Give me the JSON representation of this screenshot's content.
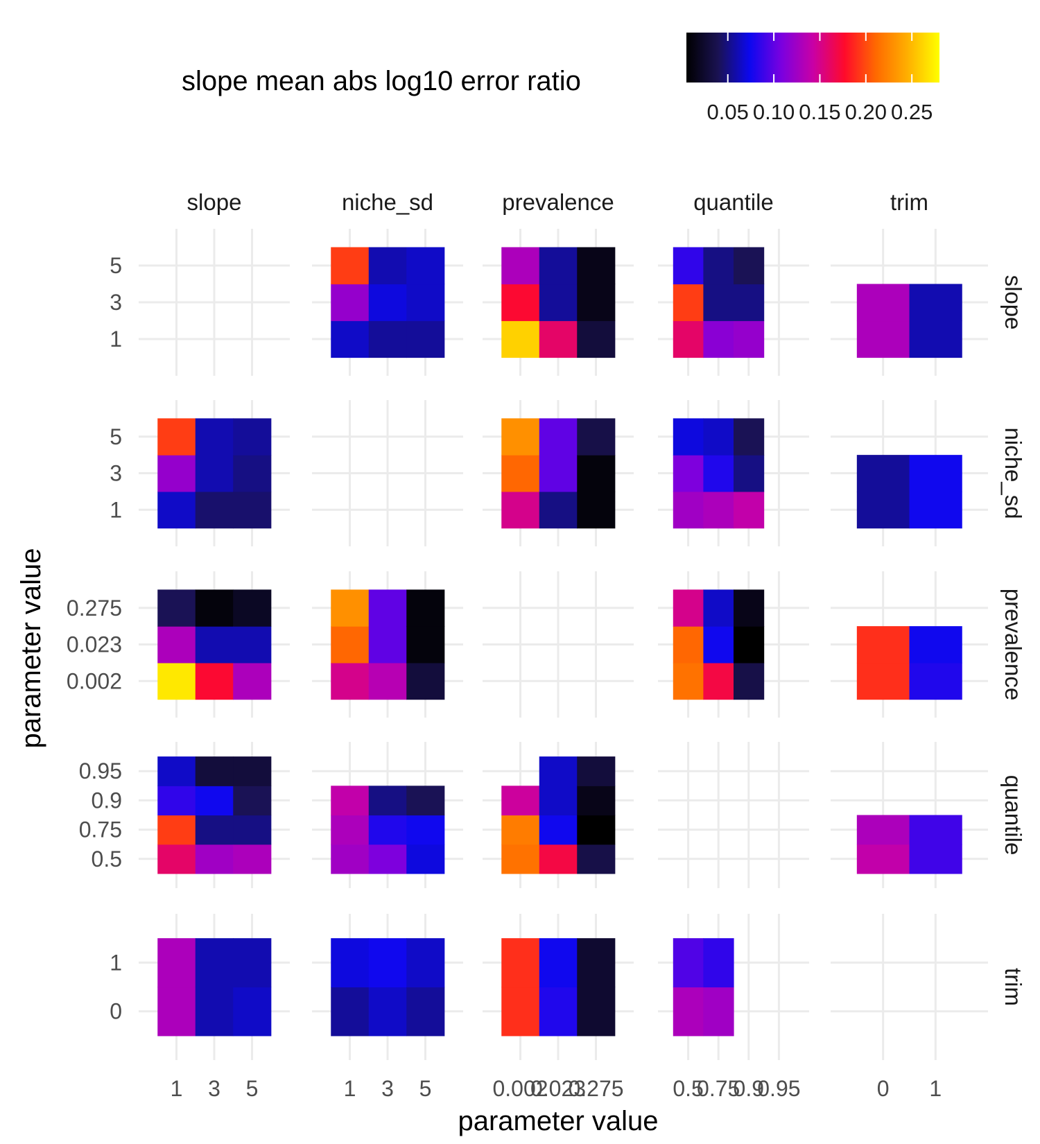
{
  "chart_data": {
    "type": "heatmap",
    "title": "slope mean abs log10 error ratio",
    "xlabel": "parameter value",
    "ylabel": "parameter value",
    "legend": {
      "position": "top-right",
      "ticks": [
        0.05,
        0.1,
        0.15,
        0.2,
        0.25
      ],
      "tick_labels": [
        "0.05",
        "0.10",
        "0.15",
        "0.20",
        "0.25"
      ],
      "range": [
        0.005,
        0.28
      ],
      "colors": [
        "#000000",
        "#1a1252",
        "#0c08ef",
        "#7a00e0",
        "#c800a6",
        "#ff0a2b",
        "#ff6a00",
        "#ffb000",
        "#ffff00"
      ]
    },
    "parameters": [
      "slope",
      "niche_sd",
      "prevalence",
      "quantile",
      "trim"
    ],
    "levels": {
      "slope": [
        "1",
        "3",
        "5"
      ],
      "niche_sd": [
        "1",
        "3",
        "5"
      ],
      "prevalence": [
        "0.002",
        "0.023",
        "0.275"
      ],
      "quantile": [
        "0.5",
        "0.75",
        "0.9",
        "0.95"
      ],
      "trim": [
        "0",
        "1"
      ]
    },
    "cells": {
      "niche_sd|slope": [
        [
          0.065,
          0.12,
          0.195
        ],
        [
          0.045,
          0.06,
          0.06
        ],
        [
          0.045,
          0.05,
          0.055
        ]
      ],
      "prevalence|slope": [
        [
          0.27,
          0.13,
          0.04
        ],
        [
          0.175,
          0.06,
          0.01
        ],
        [
          0.13,
          0.06,
          0.02
        ]
      ],
      "quantile|slope": [
        [
          0.16,
          0.195,
          0.085,
          0.065
        ],
        [
          0.125,
          0.05,
          0.075,
          0.03
        ],
        [
          0.13,
          0.05,
          0.04,
          0.03
        ],
        [
          0.135,
          0.06,
          0.07,
          0.04
        ]
      ],
      "trim|slope": [
        [
          0.13,
          0.13
        ],
        [
          0.06,
          0.06
        ],
        [
          0.065,
          0.06
        ]
      ],
      "slope|niche_sd": [
        [
          0.065,
          0.12,
          0.195
        ],
        [
          0.055,
          0.07,
          0.06
        ],
        [
          0.055,
          0.065,
          0.065
        ]
      ],
      "prevalence|niche_sd": [
        [
          0.15,
          0.21,
          0.23
        ],
        [
          0.135,
          0.1,
          0.1
        ],
        [
          0.03,
          0.01,
          0.01
        ]
      ],
      "quantile|niche_sd": [
        [
          0.125,
          0.13,
          0.14
        ],
        [
          0.11,
          0.08,
          0.05
        ],
        [
          0.07,
          0.075,
          0.04
        ],
        [
          0.055,
          0.055,
          0.02
        ]
      ],
      "trim|niche_sd": [
        [
          0.055,
          0.07,
          0.105
        ],
        [
          0.065,
          0.075,
          0.105
        ],
        [
          0.055,
          0.065,
          0.105
        ]
      ],
      "slope|prevalence": [
        [
          0.26,
          0.175,
          0.13
        ],
        [
          0.16,
          0.055,
          0.055
        ],
        [
          0.03,
          0.015,
          0.015
        ]
      ],
      "niche_sd|prevalence": [
        [
          0.15,
          0.21,
          0.23
        ],
        [
          0.05,
          0.1,
          0.1
        ],
        [
          0.01,
          0.01,
          0.035
        ]
      ],
      "quantile|prevalence": [
        [
          0.215,
          0.22,
          0.145,
          null
        ],
        [
          0.17,
          0.075,
          0.065,
          0.065
        ],
        [
          0.035,
          0.005,
          0.015,
          0.03
        ]
      ],
      "trim|prevalence": [
        [
          0.19,
          0.19
        ],
        [
          0.08,
          0.075
        ],
        [
          0.025,
          0.025
        ]
      ],
      "slope|quantile": [
        [
          0.16,
          0.195,
          0.085,
          0.065
        ],
        [
          0.115,
          0.05,
          0.05,
          0.03
        ],
        [
          0.12,
          0.05,
          0.04,
          0.03
        ]
      ],
      "niche_sd|quantile": [
        [
          0.125,
          0.11,
          0.07,
          0.055
        ],
        [
          0.13,
          0.08,
          0.065,
          0.04
        ],
        [
          0.14,
          0.05,
          0.04,
          0.02
        ]
      ],
      "prevalence|quantile": [
        [
          0.215,
          0.21,
          0.15,
          null
        ],
        [
          0.17,
          0.075,
          0.065,
          0.065
        ],
        [
          0.035,
          0.005,
          0.015,
          0.03
        ]
      ],
      "trim|quantile": [
        [
          0.13,
          0.095,
          0.07,
          0.055
        ],
        [
          0.125,
          0.085,
          0.065,
          0.05
        ]
      ],
      "slope|trim": [
        [
          0.13,
          0.13
        ],
        [
          0.06,
          0.06
        ],
        [
          0.06,
          0.06
        ]
      ],
      "niche_sd|trim": [
        [
          0.055,
          0.055
        ],
        [
          0.075,
          0.075
        ],
        [
          0.105,
          0.105
        ]
      ],
      "prevalence|trim": [
        [
          0.19,
          0.19
        ],
        [
          0.08,
          0.075
        ],
        [
          0.025,
          0.025
        ]
      ],
      "quantile|trim": [
        [
          0.14,
          0.13
        ],
        [
          0.09,
          0.09
        ],
        [
          0.06,
          0.065
        ],
        [
          0.05,
          0.05
        ]
      ]
    }
  }
}
